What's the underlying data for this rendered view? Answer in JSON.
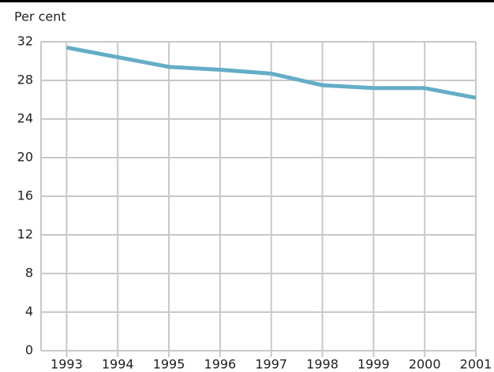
{
  "chart_data": {
    "type": "line",
    "y_label": "Per cent",
    "x": [
      1993,
      1994,
      1995,
      1996,
      1997,
      1998,
      1999,
      2000,
      2001
    ],
    "series": [
      {
        "color": "#63adc7",
        "values": [
          31.4,
          30.4,
          29.4,
          29.1,
          28.7,
          27.5,
          27.2,
          27.2,
          26.2
        ]
      }
    ],
    "xlim": [
      1992.5,
      2001
    ],
    "xticks": [
      1993,
      1994,
      1995,
      1996,
      1997,
      1998,
      1999,
      2000,
      2001
    ],
    "ylim": [
      0,
      32
    ],
    "yticks": [
      0,
      4,
      8,
      12,
      16,
      20,
      24,
      28,
      32
    ],
    "grid": true
  }
}
